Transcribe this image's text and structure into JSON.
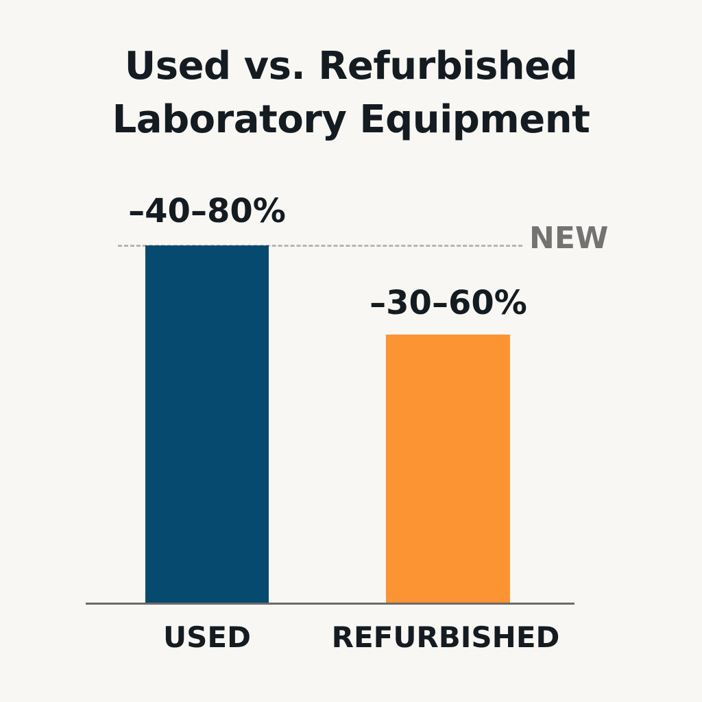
{
  "chart_data": {
    "type": "bar",
    "title": "Used vs. Refurbished Laboratory Equipment",
    "categories": [
      "USED",
      "REFURBISHED"
    ],
    "values": [
      100,
      75
    ],
    "value_labels": [
      "–40–80%",
      "–30–60%"
    ],
    "reference_line": {
      "label": "NEW",
      "style": "dashed",
      "value": 100
    },
    "colors": [
      "#064b6f",
      "#fd9434"
    ],
    "xlabel": "",
    "ylabel": "",
    "grid": false,
    "legend": "none"
  },
  "title_line1": "Used vs. Refurbished",
  "title_line2": "Laboratory Equipment"
}
